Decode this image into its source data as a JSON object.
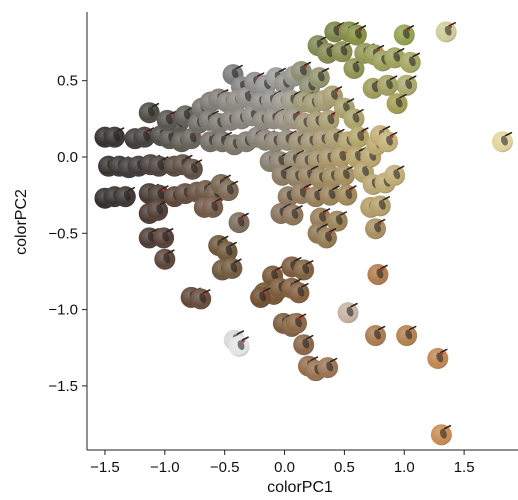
{
  "chart_data": {
    "type": "scatter",
    "xlabel": "colorPC1",
    "ylabel": "colorPC2",
    "xlim": [
      -1.65,
      1.95
    ],
    "ylim": [
      -1.92,
      0.95
    ],
    "xticks": [
      -1.5,
      -1.0,
      -0.5,
      0.0,
      0.5,
      1.0,
      1.5
    ],
    "xtick_labels": [
      "−1.5",
      "−1.0",
      "−0.5",
      "0.0",
      "0.5",
      "1.0",
      "1.5"
    ],
    "yticks": [
      -1.5,
      -1.0,
      -0.5,
      0.0,
      0.5
    ],
    "ytick_labels": [
      "−1.5",
      "−1.0",
      "−0.5",
      "0.0",
      "0.5"
    ],
    "grid": false,
    "marker": "bird-photo-disc",
    "points": [
      {
        "x": -1.5,
        "y": 0.13,
        "color": "#2e2d2c"
      },
      {
        "x": -1.42,
        "y": 0.13,
        "color": "#333230"
      },
      {
        "x": -1.47,
        "y": -0.06,
        "color": "#34312f"
      },
      {
        "x": -1.38,
        "y": -0.06,
        "color": "#373430"
      },
      {
        "x": -1.3,
        "y": -0.07,
        "color": "#3b3734"
      },
      {
        "x": -1.5,
        "y": -0.27,
        "color": "#2f2b2a"
      },
      {
        "x": -1.42,
        "y": -0.26,
        "color": "#35302e"
      },
      {
        "x": -1.33,
        "y": -0.26,
        "color": "#3a3532"
      },
      {
        "x": -1.25,
        "y": 0.12,
        "color": "#3b3a37"
      },
      {
        "x": -1.17,
        "y": 0.13,
        "color": "#403e3a"
      },
      {
        "x": -1.13,
        "y": 0.29,
        "color": "#4a4a40"
      },
      {
        "x": -1.22,
        "y": -0.06,
        "color": "#3c3834"
      },
      {
        "x": -1.12,
        "y": -0.05,
        "color": "#453c37"
      },
      {
        "x": -1.05,
        "y": -0.06,
        "color": "#4a413a"
      },
      {
        "x": -1.13,
        "y": -0.24,
        "color": "#44362f"
      },
      {
        "x": -1.05,
        "y": -0.25,
        "color": "#4b3b33"
      },
      {
        "x": -1.13,
        "y": -0.37,
        "color": "#4a3830"
      },
      {
        "x": -1.06,
        "y": -0.35,
        "color": "#503d34"
      },
      {
        "x": -1.13,
        "y": -0.53,
        "color": "#4b3a32"
      },
      {
        "x": -1.01,
        "y": -0.53,
        "color": "#553f35"
      },
      {
        "x": -1.0,
        "y": -0.67,
        "color": "#5a4436"
      },
      {
        "x": -1.03,
        "y": 0.14,
        "color": "#4c4a44"
      },
      {
        "x": -0.96,
        "y": 0.12,
        "color": "#55534b"
      },
      {
        "x": -0.89,
        "y": 0.22,
        "color": "#5a5850"
      },
      {
        "x": -0.98,
        "y": 0.24,
        "color": "#55534c"
      },
      {
        "x": -0.83,
        "y": 0.27,
        "color": "#605e56"
      },
      {
        "x": -0.86,
        "y": 0.1,
        "color": "#5e5a52"
      },
      {
        "x": -0.78,
        "y": 0.12,
        "color": "#66625a"
      },
      {
        "x": -0.72,
        "y": 0.22,
        "color": "#6a6a62"
      },
      {
        "x": -0.69,
        "y": 0.32,
        "color": "#72706a"
      },
      {
        "x": -0.92,
        "y": -0.06,
        "color": "#54463a"
      },
      {
        "x": -0.85,
        "y": -0.05,
        "color": "#5b4b3f"
      },
      {
        "x": -0.77,
        "y": -0.08,
        "color": "#5f4e40"
      },
      {
        "x": -0.92,
        "y": -0.26,
        "color": "#5a4538"
      },
      {
        "x": -0.83,
        "y": -0.24,
        "color": "#614b3c"
      },
      {
        "x": -0.73,
        "y": -0.23,
        "color": "#654f3f"
      },
      {
        "x": -0.66,
        "y": -0.22,
        "color": "#6a5442"
      },
      {
        "x": -0.58,
        "y": -0.24,
        "color": "#6e5843"
      },
      {
        "x": -0.67,
        "y": -0.33,
        "color": "#6c5441"
      },
      {
        "x": -0.6,
        "y": -0.33,
        "color": "#725a46"
      },
      {
        "x": -0.53,
        "y": -0.18,
        "color": "#745f4a"
      },
      {
        "x": -0.47,
        "y": -0.22,
        "color": "#7a6550"
      },
      {
        "x": -0.38,
        "y": -0.43,
        "color": "#7c6a58"
      },
      {
        "x": -0.55,
        "y": -0.58,
        "color": "#6b5536"
      },
      {
        "x": -0.48,
        "y": -0.62,
        "color": "#6e5638"
      },
      {
        "x": -0.52,
        "y": -0.74,
        "color": "#6b5438"
      },
      {
        "x": -0.44,
        "y": -0.73,
        "color": "#705a3e"
      },
      {
        "x": -0.78,
        "y": -0.92,
        "color": "#5e4536"
      },
      {
        "x": -0.7,
        "y": -0.93,
        "color": "#654a3a"
      },
      {
        "x": -0.43,
        "y": 0.54,
        "color": "#7a7a7a"
      },
      {
        "x": -0.36,
        "y": 0.46,
        "color": "#808080"
      },
      {
        "x": -0.62,
        "y": 0.36,
        "color": "#7a7872"
      },
      {
        "x": -0.55,
        "y": 0.38,
        "color": "#7e7b75"
      },
      {
        "x": -0.48,
        "y": 0.36,
        "color": "#84817a"
      },
      {
        "x": -0.4,
        "y": 0.37,
        "color": "#8a8780"
      },
      {
        "x": -0.32,
        "y": 0.39,
        "color": "#8e8b84"
      },
      {
        "x": -0.63,
        "y": 0.24,
        "color": "#76736c"
      },
      {
        "x": -0.55,
        "y": 0.22,
        "color": "#7c7870"
      },
      {
        "x": -0.45,
        "y": 0.24,
        "color": "#827e76"
      },
      {
        "x": -0.36,
        "y": 0.25,
        "color": "#87837a"
      },
      {
        "x": -0.27,
        "y": 0.27,
        "color": "#8c887e"
      },
      {
        "x": -0.62,
        "y": 0.1,
        "color": "#716c62"
      },
      {
        "x": -0.52,
        "y": 0.1,
        "color": "#767066"
      },
      {
        "x": -0.42,
        "y": 0.08,
        "color": "#7b756a"
      },
      {
        "x": -0.32,
        "y": 0.1,
        "color": "#80796d"
      },
      {
        "x": -0.23,
        "y": 0.13,
        "color": "#857e72"
      },
      {
        "x": -0.25,
        "y": 0.49,
        "color": "#8a8a88"
      },
      {
        "x": -0.16,
        "y": 0.47,
        "color": "#929290"
      },
      {
        "x": -0.07,
        "y": 0.52,
        "color": "#9a9a98"
      },
      {
        "x": 0.0,
        "y": 0.48,
        "color": "#8e8e86"
      },
      {
        "x": 0.08,
        "y": 0.53,
        "color": "#94948a"
      },
      {
        "x": -0.2,
        "y": 0.36,
        "color": "#8c8a84"
      },
      {
        "x": -0.11,
        "y": 0.37,
        "color": "#93908a"
      },
      {
        "x": -0.02,
        "y": 0.36,
        "color": "#9a968e"
      },
      {
        "x": 0.06,
        "y": 0.37,
        "color": "#9c9786"
      },
      {
        "x": -0.18,
        "y": 0.24,
        "color": "#8a857a"
      },
      {
        "x": -0.09,
        "y": 0.25,
        "color": "#908a7e"
      },
      {
        "x": 0.0,
        "y": 0.24,
        "color": "#968f80"
      },
      {
        "x": 0.08,
        "y": 0.25,
        "color": "#9a9280"
      },
      {
        "x": -0.16,
        "y": 0.11,
        "color": "#878072"
      },
      {
        "x": -0.08,
        "y": 0.1,
        "color": "#8c8474"
      },
      {
        "x": 0.02,
        "y": 0.11,
        "color": "#928a76"
      },
      {
        "x": -0.12,
        "y": -0.03,
        "color": "#847c6c"
      },
      {
        "x": -0.04,
        "y": -0.03,
        "color": "#8a806e"
      },
      {
        "x": 0.14,
        "y": 0.56,
        "color": "#8a8c70"
      },
      {
        "x": 0.21,
        "y": 0.46,
        "color": "#8c8e6e"
      },
      {
        "x": 0.29,
        "y": 0.52,
        "color": "#90926c"
      },
      {
        "x": 0.16,
        "y": 0.36,
        "color": "#9a946e"
      },
      {
        "x": 0.24,
        "y": 0.35,
        "color": "#9e9870"
      },
      {
        "x": 0.33,
        "y": 0.37,
        "color": "#a29a70"
      },
      {
        "x": 0.4,
        "y": 0.4,
        "color": "#a69c6e"
      },
      {
        "x": 0.17,
        "y": 0.22,
        "color": "#9e9472"
      },
      {
        "x": 0.27,
        "y": 0.23,
        "color": "#a49872"
      },
      {
        "x": 0.37,
        "y": 0.24,
        "color": "#a89c70"
      },
      {
        "x": 0.12,
        "y": 0.1,
        "color": "#9a8e72"
      },
      {
        "x": 0.22,
        "y": 0.1,
        "color": "#a09270"
      },
      {
        "x": 0.32,
        "y": 0.11,
        "color": "#a69670"
      },
      {
        "x": 0.42,
        "y": 0.12,
        "color": "#aa9a6e"
      },
      {
        "x": 0.08,
        "y": -0.02,
        "color": "#94866a"
      },
      {
        "x": 0.18,
        "y": -0.03,
        "color": "#9a8a6a"
      },
      {
        "x": 0.28,
        "y": -0.02,
        "color": "#a08e68"
      },
      {
        "x": 0.37,
        "y": -0.01,
        "color": "#a69266"
      },
      {
        "x": 0.47,
        "y": 0.0,
        "color": "#ac9866"
      },
      {
        "x": 0.53,
        "y": 0.1,
        "color": "#b0a06a"
      },
      {
        "x": -0.02,
        "y": -0.12,
        "color": "#8a7a60"
      },
      {
        "x": 0.1,
        "y": -0.13,
        "color": "#907e60"
      },
      {
        "x": 0.2,
        "y": -0.12,
        "color": "#96825e"
      },
      {
        "x": 0.3,
        "y": -0.14,
        "color": "#9a865e"
      },
      {
        "x": 0.4,
        "y": -0.13,
        "color": "#a08a5e"
      },
      {
        "x": 0.5,
        "y": -0.12,
        "color": "#a68e5e"
      },
      {
        "x": 0.03,
        "y": -0.26,
        "color": "#8a765c"
      },
      {
        "x": 0.14,
        "y": -0.24,
        "color": "#907a5a"
      },
      {
        "x": 0.26,
        "y": -0.26,
        "color": "#967e58"
      },
      {
        "x": 0.38,
        "y": -0.25,
        "color": "#9a8258"
      },
      {
        "x": 0.52,
        "y": -0.25,
        "color": "#a28858"
      },
      {
        "x": -0.03,
        "y": -0.37,
        "color": "#86705a"
      },
      {
        "x": 0.07,
        "y": -0.38,
        "color": "#8c7458"
      },
      {
        "x": 0.3,
        "y": -0.4,
        "color": "#947a52"
      },
      {
        "x": 0.44,
        "y": -0.42,
        "color": "#9a8054"
      },
      {
        "x": 0.28,
        "y": -0.5,
        "color": "#8e7450"
      },
      {
        "x": 0.35,
        "y": -0.53,
        "color": "#92784e"
      },
      {
        "x": 0.5,
        "y": 0.32,
        "color": "#a8a06a"
      },
      {
        "x": 0.58,
        "y": 0.25,
        "color": "#aca268"
      },
      {
        "x": 0.62,
        "y": 0.13,
        "color": "#b2a468"
      },
      {
        "x": 0.6,
        "y": 0.0,
        "color": "#b2a066"
      },
      {
        "x": 0.66,
        "y": -0.1,
        "color": "#b4a26a"
      },
      {
        "x": 0.72,
        "y": 0.0,
        "color": "#b8a46c"
      },
      {
        "x": 0.77,
        "y": 0.08,
        "color": "#bca86e"
      },
      {
        "x": 0.8,
        "y": 0.14,
        "color": "#c0ac72"
      },
      {
        "x": 0.86,
        "y": 0.1,
        "color": "#c4b076"
      },
      {
        "x": 0.74,
        "y": -0.18,
        "color": "#b8a46e"
      },
      {
        "x": 0.84,
        "y": -0.17,
        "color": "#bca870"
      },
      {
        "x": 0.72,
        "y": -0.33,
        "color": "#b09a66"
      },
      {
        "x": 0.8,
        "y": -0.32,
        "color": "#b49e68"
      },
      {
        "x": 0.92,
        "y": -0.12,
        "color": "#c0ac74"
      },
      {
        "x": 0.76,
        "y": -0.47,
        "color": "#a88e5e"
      },
      {
        "x": 0.28,
        "y": 0.73,
        "color": "#7e8650"
      },
      {
        "x": 0.36,
        "y": 0.68,
        "color": "#84884e"
      },
      {
        "x": 0.42,
        "y": 0.82,
        "color": "#7a8446"
      },
      {
        "x": 0.48,
        "y": 0.69,
        "color": "#8a8c50"
      },
      {
        "x": 0.54,
        "y": 0.82,
        "color": "#808844"
      },
      {
        "x": 0.6,
        "y": 0.8,
        "color": "#86903e"
      },
      {
        "x": 0.58,
        "y": 0.58,
        "color": "#909250"
      },
      {
        "x": 0.67,
        "y": 0.68,
        "color": "#929652"
      },
      {
        "x": 0.75,
        "y": 0.67,
        "color": "#969a56"
      },
      {
        "x": 0.82,
        "y": 0.63,
        "color": "#9a9e58"
      },
      {
        "x": 0.92,
        "y": 0.65,
        "color": "#9ea05a"
      },
      {
        "x": 1.0,
        "y": 0.8,
        "color": "#94a04e"
      },
      {
        "x": 1.05,
        "y": 0.62,
        "color": "#a4a660"
      },
      {
        "x": 1.02,
        "y": 0.47,
        "color": "#aaa86a"
      },
      {
        "x": 0.74,
        "y": 0.45,
        "color": "#9e9a5a"
      },
      {
        "x": 0.86,
        "y": 0.47,
        "color": "#a2a05e"
      },
      {
        "x": 0.94,
        "y": 0.35,
        "color": "#a29c50"
      },
      {
        "x": 1.35,
        "y": 0.82,
        "color": "#d0cc98"
      },
      {
        "x": 1.82,
        "y": 0.1,
        "color": "#e0d49c"
      },
      {
        "x": -0.42,
        "y": -1.2,
        "color": "#d8d8d8"
      },
      {
        "x": -0.38,
        "y": -1.24,
        "color": "#e4e4e4"
      },
      {
        "x": 0.06,
        "y": -0.72,
        "color": "#7a5838"
      },
      {
        "x": 0.16,
        "y": -0.74,
        "color": "#80603c"
      },
      {
        "x": -0.1,
        "y": -0.78,
        "color": "#765636"
      },
      {
        "x": -0.17,
        "y": -0.89,
        "color": "#70502e"
      },
      {
        "x": -0.09,
        "y": -0.9,
        "color": "#765432"
      },
      {
        "x": -0.04,
        "y": -0.86,
        "color": "#7a5836"
      },
      {
        "x": 0.06,
        "y": -0.86,
        "color": "#7e5c3a"
      },
      {
        "x": 0.12,
        "y": -0.89,
        "color": "#825e3c"
      },
      {
        "x": -0.2,
        "y": -0.92,
        "color": "#6e4c30"
      },
      {
        "x": -0.01,
        "y": -1.09,
        "color": "#7c5a3c"
      },
      {
        "x": 0.06,
        "y": -1.11,
        "color": "#82603e"
      },
      {
        "x": 0.1,
        "y": -1.09,
        "color": "#8a6644"
      },
      {
        "x": 0.16,
        "y": -1.23,
        "color": "#8a6446"
      },
      {
        "x": 0.2,
        "y": -1.37,
        "color": "#906a4a"
      },
      {
        "x": 0.26,
        "y": -1.4,
        "color": "#96704e"
      },
      {
        "x": 0.36,
        "y": -1.38,
        "color": "#9a7450"
      },
      {
        "x": 0.53,
        "y": -1.02,
        "color": "#c6b2a0"
      },
      {
        "x": 0.78,
        "y": -0.77,
        "color": "#b07a4a"
      },
      {
        "x": 0.76,
        "y": -1.17,
        "color": "#aa7a4e"
      },
      {
        "x": 1.02,
        "y": -1.17,
        "color": "#b2804e"
      },
      {
        "x": 1.28,
        "y": -1.32,
        "color": "#c08650"
      },
      {
        "x": 1.31,
        "y": -1.82,
        "color": "#c88a50"
      }
    ]
  }
}
